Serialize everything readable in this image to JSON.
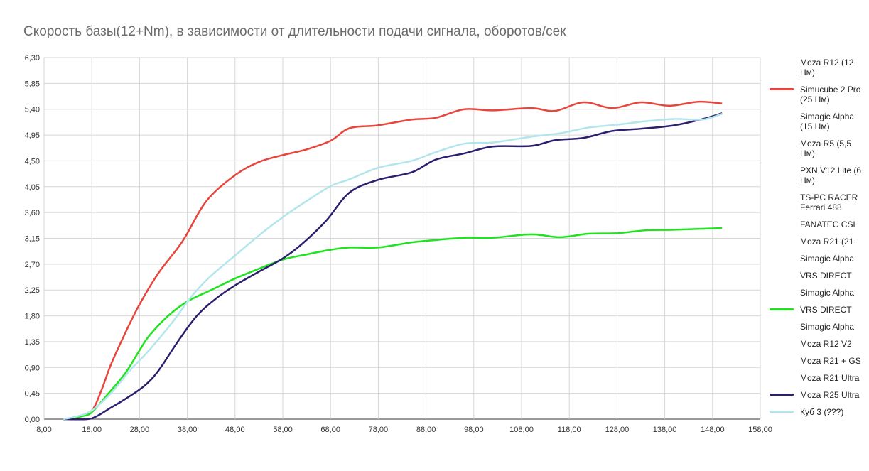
{
  "chart_data": {
    "type": "line",
    "title": "Скорость базы(12+Nm), в зависимости от длительности подачи сигнала, оборотов/сек",
    "xlim": [
      8,
      158
    ],
    "xticks": [
      {
        "value": 8,
        "label": "8,00"
      },
      {
        "value": 18,
        "label": "18,00"
      },
      {
        "value": 28,
        "label": "28,00"
      },
      {
        "value": 38,
        "label": "38,00"
      },
      {
        "value": 48,
        "label": "48,00"
      },
      {
        "value": 58,
        "label": "58,00"
      },
      {
        "value": 68,
        "label": "68,00"
      },
      {
        "value": 78,
        "label": "78,00"
      },
      {
        "value": 88,
        "label": "88,00"
      },
      {
        "value": 98,
        "label": "98,00"
      },
      {
        "value": 108,
        "label": "108,00"
      },
      {
        "value": 118,
        "label": "118,00"
      },
      {
        "value": 128,
        "label": "128,00"
      },
      {
        "value": 138,
        "label": "138,00"
      },
      {
        "value": 148,
        "label": "148,00"
      },
      {
        "value": 158,
        "label": "158,00"
      }
    ],
    "ylim": [
      0,
      6.3
    ],
    "yticks": [
      {
        "value": 0,
        "label": "0,00"
      },
      {
        "value": 0.45,
        "label": "0,45"
      },
      {
        "value": 0.9,
        "label": "0,90"
      },
      {
        "value": 1.35,
        "label": "1,35"
      },
      {
        "value": 1.8,
        "label": "1,80"
      },
      {
        "value": 2.25,
        "label": "2,25"
      },
      {
        "value": 2.7,
        "label": "2,70"
      },
      {
        "value": 3.15,
        "label": "3,15"
      },
      {
        "value": 3.6,
        "label": "3,60"
      },
      {
        "value": 4.05,
        "label": "4,05"
      },
      {
        "value": 4.5,
        "label": "4,50"
      },
      {
        "value": 4.95,
        "label": "4,95"
      },
      {
        "value": 5.4,
        "label": "5,40"
      },
      {
        "value": 5.85,
        "label": "5,85"
      },
      {
        "value": 6.3,
        "label": "6,30"
      }
    ],
    "grid": true,
    "legend": "right",
    "series": [
      {
        "name": "Moza R12 (12 Нм)",
        "x": [],
        "values": []
      },
      {
        "name": "Simucube 2 Pro (25 Нм)",
        "color": "#e8453c",
        "x": [
          12,
          15,
          18,
          20,
          22,
          25,
          28,
          32,
          37,
          42,
          48,
          53,
          58,
          63,
          68,
          72,
          78,
          85,
          90,
          96,
          102,
          110,
          115,
          121,
          127,
          133,
          139,
          145,
          150
        ],
        "values": [
          0,
          0.03,
          0.15,
          0.5,
          0.95,
          1.5,
          2.0,
          2.55,
          3.1,
          3.8,
          4.25,
          4.48,
          4.6,
          4.7,
          4.85,
          5.07,
          5.12,
          5.22,
          5.25,
          5.4,
          5.38,
          5.42,
          5.37,
          5.52,
          5.42,
          5.52,
          5.46,
          5.53,
          5.5
        ]
      },
      {
        "name": "Simagic Alpha (15 Нм)",
        "x": [],
        "values": []
      },
      {
        "name": "Moza R5 (5,5 Нм)",
        "x": [],
        "values": []
      },
      {
        "name": "PXN V12 Lite (6 Нм)",
        "x": [],
        "values": []
      },
      {
        "name": "TS-PC RACER Ferrari 488",
        "x": [],
        "values": []
      },
      {
        "name": "FANATEC CSL",
        "x": [],
        "values": []
      },
      {
        "name": "Moza R21 (21",
        "x": [],
        "values": []
      },
      {
        "name": "Simagic Alpha",
        "x": [],
        "values": []
      },
      {
        "name": "VRS DIRECT",
        "x": [],
        "values": []
      },
      {
        "name": "Simagic Alpha",
        "x": [],
        "values": []
      },
      {
        "name": "VRS DIRECT",
        "color": "#1ee31e",
        "x": [
          12,
          16,
          18,
          21,
          25,
          28,
          30,
          34,
          38,
          43,
          48,
          53,
          58,
          63,
          68,
          72,
          78,
          85,
          90,
          96,
          102,
          110,
          116,
          122,
          128,
          134,
          140,
          150
        ],
        "values": [
          0,
          0.05,
          0.12,
          0.4,
          0.8,
          1.2,
          1.45,
          1.8,
          2.05,
          2.25,
          2.45,
          2.62,
          2.78,
          2.87,
          2.95,
          2.99,
          2.99,
          3.08,
          3.12,
          3.16,
          3.16,
          3.22,
          3.17,
          3.23,
          3.24,
          3.29,
          3.3,
          3.33
        ]
      },
      {
        "name": "Simagic Alpha",
        "x": [],
        "values": []
      },
      {
        "name": "Moza R12 V2",
        "x": [],
        "values": []
      },
      {
        "name": "Moza R21 + GS",
        "x": [],
        "values": []
      },
      {
        "name": "Moza R21 Ultra",
        "x": [],
        "values": []
      },
      {
        "name": "Moza R25 Ultra",
        "color": "#2b1f6e",
        "x": [
          12,
          17,
          19,
          22,
          25,
          29,
          32,
          36,
          40,
          44,
          48,
          53,
          58,
          62,
          67,
          72,
          78,
          85,
          90,
          96,
          102,
          110,
          115,
          121,
          127,
          133,
          140,
          146,
          150
        ],
        "values": [
          0,
          0,
          0.05,
          0.2,
          0.35,
          0.58,
          0.85,
          1.35,
          1.8,
          2.1,
          2.33,
          2.57,
          2.8,
          3.05,
          3.45,
          3.95,
          4.17,
          4.3,
          4.52,
          4.63,
          4.75,
          4.76,
          4.86,
          4.9,
          5.02,
          5.06,
          5.12,
          5.23,
          5.33
        ]
      },
      {
        "name": "Куб 3 (???)",
        "color": "#b2e6ec",
        "x": [
          12,
          15,
          18,
          22,
          26,
          30,
          35,
          39,
          43,
          48,
          53,
          58,
          63,
          68,
          72,
          78,
          85,
          90,
          96,
          102,
          110,
          116,
          122,
          128,
          134,
          140,
          146,
          150
        ],
        "values": [
          0,
          0.05,
          0.15,
          0.45,
          0.85,
          1.2,
          1.7,
          2.15,
          2.5,
          2.85,
          3.2,
          3.52,
          3.8,
          4.06,
          4.18,
          4.38,
          4.5,
          4.65,
          4.8,
          4.82,
          4.92,
          4.98,
          5.08,
          5.13,
          5.19,
          5.23,
          5.22,
          5.32
        ]
      }
    ]
  }
}
